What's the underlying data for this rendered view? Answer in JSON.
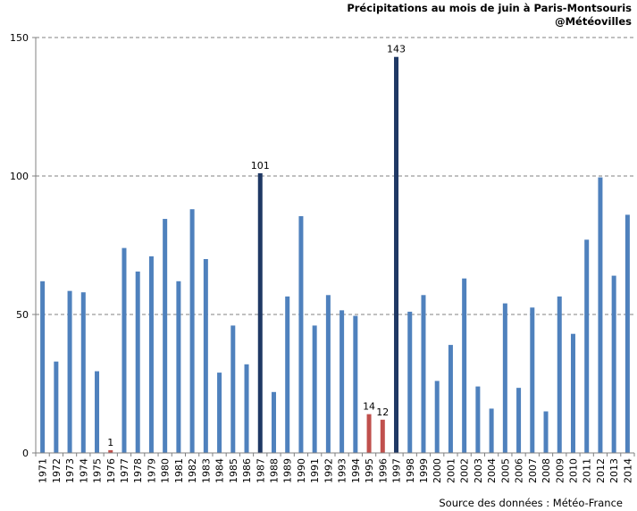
{
  "title": "Précipitations au mois de juin à Paris-Montsouris",
  "subtitle": "@Météovilles",
  "source": "Source des données : Météo-France",
  "chart_data": {
    "type": "bar",
    "title": "Précipitations au mois de juin à Paris-Montsouris",
    "subtitle": "@Météovilles",
    "categories": [
      "1971",
      "1972",
      "1973",
      "1974",
      "1975",
      "1976",
      "1977",
      "1978",
      "1979",
      "1980",
      "1981",
      "1982",
      "1983",
      "1984",
      "1985",
      "1986",
      "1987",
      "1988",
      "1989",
      "1990",
      "1991",
      "1992",
      "1993",
      "1994",
      "1995",
      "1996",
      "1997",
      "1998",
      "1999",
      "2000",
      "2001",
      "2002",
      "2003",
      "2004",
      "2005",
      "2006",
      "2007",
      "2008",
      "2009",
      "2010",
      "2011",
      "2012",
      "2013",
      "2014"
    ],
    "values": [
      62,
      33,
      58.5,
      58,
      29.5,
      1,
      74,
      65.5,
      71,
      84.5,
      62,
      88,
      70,
      29,
      46,
      32,
      101,
      22,
      56.5,
      85.5,
      46,
      57,
      51.5,
      49.5,
      14,
      12,
      143,
      51,
      57,
      26,
      39,
      63,
      24,
      16,
      54,
      23.5,
      52.5,
      15,
      56.5,
      43,
      77,
      99.5,
      64,
      86
    ],
    "ylim": [
      0,
      150
    ],
    "yticks": [
      0,
      50,
      100,
      150
    ],
    "grid": true,
    "legend": "none",
    "data_labels": [
      {
        "category": "1976",
        "text": "1"
      },
      {
        "category": "1987",
        "text": "101"
      },
      {
        "category": "1995",
        "text": "14"
      },
      {
        "category": "1996",
        "text": "12"
      },
      {
        "category": "1997",
        "text": "143"
      }
    ],
    "colors": {
      "default": "#4f81bd",
      "highlight_high": "#1f3864",
      "highlight_low": "#c0504d"
    },
    "bar_colors": {
      "1976": "highlight_low",
      "1987": "highlight_high",
      "1995": "highlight_low",
      "1996": "highlight_low",
      "1997": "highlight_high"
    }
  }
}
